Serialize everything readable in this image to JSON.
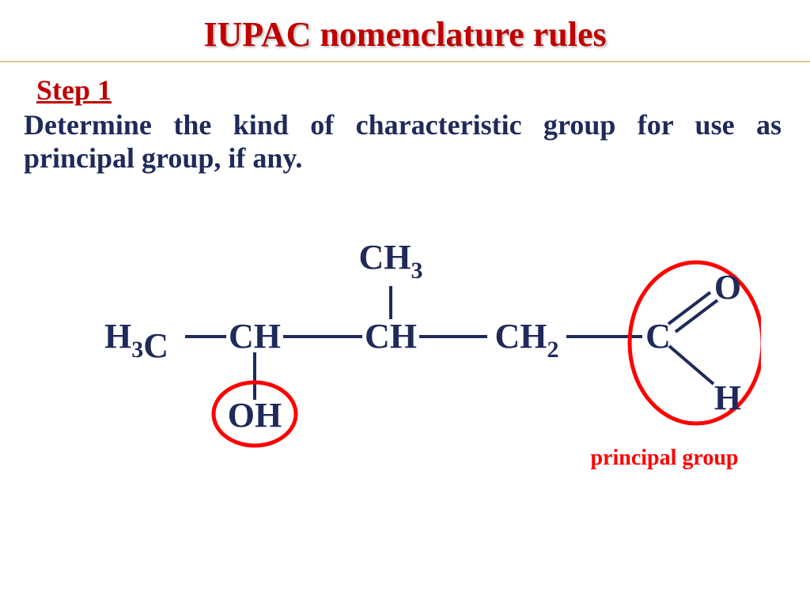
{
  "title": {
    "text": "IUPAC nomenclature rules",
    "color": "#c00000",
    "fontsize": 44
  },
  "divider_color": "#e7c38a",
  "step": {
    "label": "Step 1",
    "color": "#c00000",
    "fontsize": 36
  },
  "body": {
    "text": "Determine the kind of characteristic group for use as principal group, if any.",
    "color": "#1f2a5b",
    "fontsize": 36
  },
  "diagram": {
    "atom_color": "#1f2a5b",
    "atom_fontsize": 44,
    "sub_fontsize": 30,
    "bond_width": 4,
    "ring_color": "#ff0000",
    "ring_width": 5,
    "label": {
      "text": "principal group",
      "color": "#ff0000",
      "fontsize": 28
    },
    "atoms": {
      "c1": "H",
      "c1s": "3",
      "c1b": "C",
      "c2": "CH",
      "c3": "CH",
      "c4": "CH",
      "c4s": "2",
      "c5": "C",
      "top": "CH",
      "tops": "3",
      "oh": "OH",
      "o": "O",
      "h": "H"
    }
  }
}
